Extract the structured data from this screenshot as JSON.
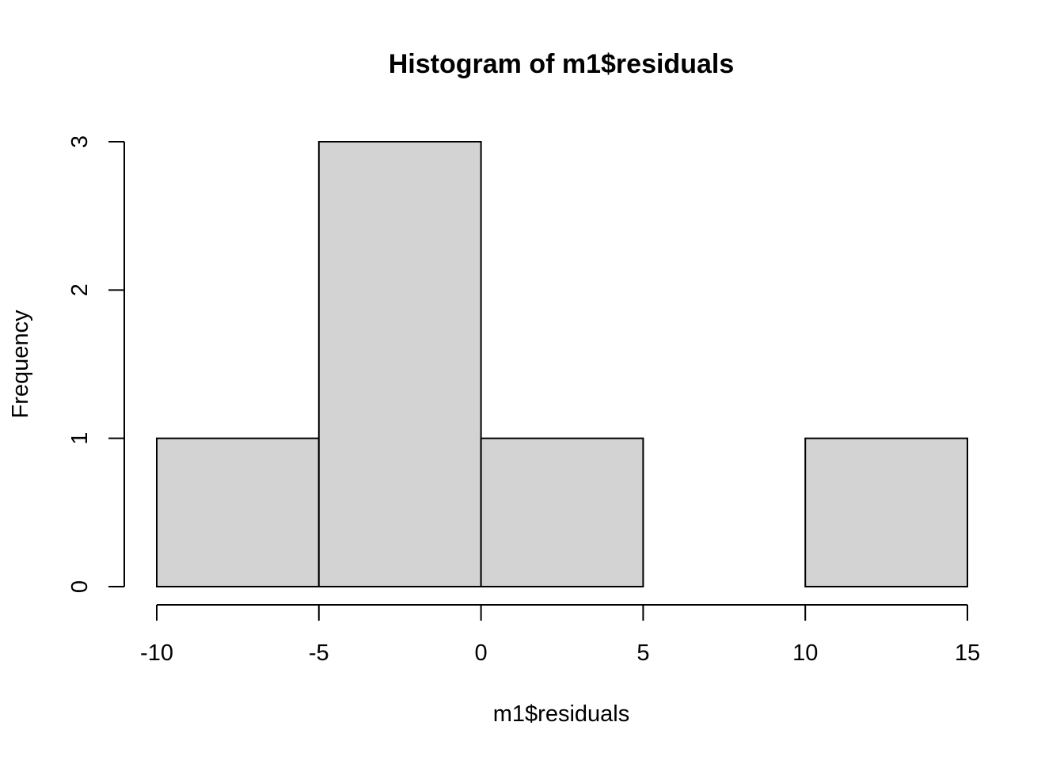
{
  "chart_data": {
    "type": "bar",
    "title": "Histogram of m1$residuals",
    "xlabel": "m1$residuals",
    "ylabel": "Frequency",
    "bins": [
      {
        "start": -10,
        "end": -5,
        "count": 1
      },
      {
        "start": -5,
        "end": 0,
        "count": 3
      },
      {
        "start": 0,
        "end": 5,
        "count": 1
      },
      {
        "start": 5,
        "end": 10,
        "count": 0
      },
      {
        "start": 10,
        "end": 15,
        "count": 1
      }
    ],
    "x_ticks": [
      -10,
      -5,
      0,
      5,
      10,
      15
    ],
    "x_tick_labels": [
      "-10",
      "-5",
      "0",
      "5",
      "10",
      "15"
    ],
    "y_ticks": [
      0,
      1,
      2,
      3
    ],
    "y_tick_labels": [
      "0",
      "1",
      "2",
      "3"
    ],
    "xlim": [
      -10,
      15
    ],
    "ylim": [
      0,
      3
    ],
    "grid": false,
    "legend": "none",
    "colors": {
      "bar_fill": "#d3d3d3",
      "bar_stroke": "#000000",
      "axis": "#000000",
      "text": "#000000"
    }
  }
}
